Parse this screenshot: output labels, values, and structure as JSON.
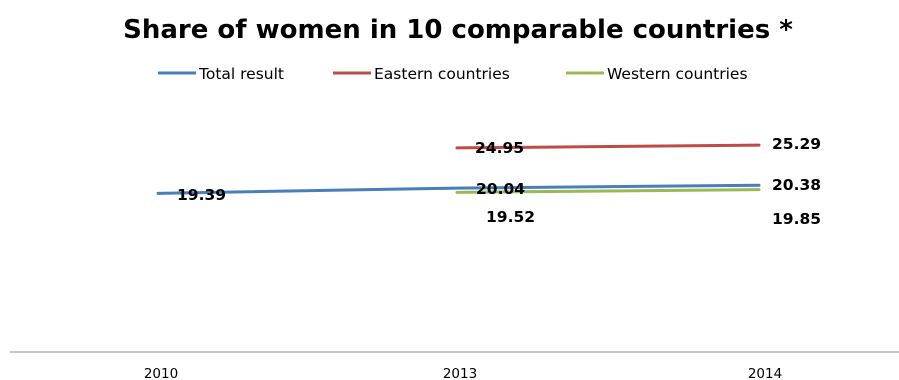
{
  "chart_data": {
    "type": "line",
    "title": "Share of women in 10 comparable countries *",
    "xlabel": "",
    "ylabel": "",
    "categories": [
      "2010",
      "2013",
      "2014"
    ],
    "ylim": [
      0,
      30
    ],
    "grid": false,
    "legend_position": "top",
    "series": [
      {
        "name": "Total result",
        "color": "#4a7ebb",
        "values": [
          19.39,
          20.04,
          20.38
        ],
        "labels": [
          "19.39",
          "20.04",
          "20.38"
        ]
      },
      {
        "name": "Eastern countries",
        "color": "#be4b48",
        "values": [
          null,
          24.95,
          25.29
        ],
        "labels": [
          "",
          "24.95",
          "25.29"
        ]
      },
      {
        "name": "Western countries",
        "color": "#98b954",
        "values": [
          null,
          19.52,
          19.85
        ],
        "labels": [
          "",
          "19.52",
          "19.85"
        ]
      }
    ]
  }
}
